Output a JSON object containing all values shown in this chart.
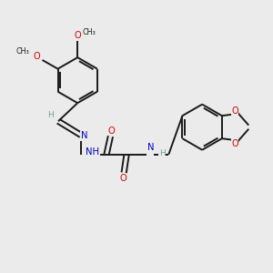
{
  "background_color": "#ebebeb",
  "bond_color": "#1a1a1a",
  "N_color": "#0000cc",
  "O_color": "#dd0000",
  "H_color": "#70a0a0",
  "figsize": [
    3.0,
    3.0
  ],
  "dpi": 100,
  "xlim": [
    0,
    10
  ],
  "ylim": [
    0,
    10
  ]
}
